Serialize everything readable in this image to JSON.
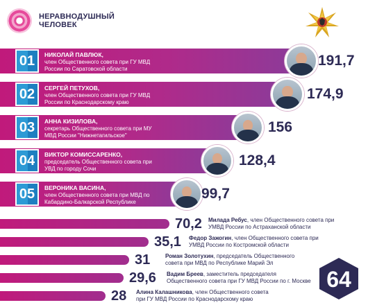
{
  "brand": {
    "line1": "НЕРАВНОДУШНЫЙ",
    "line2": "ЧЕЛОВЕК"
  },
  "emblem": {
    "icon": "mvd-eagle-emblem-icon"
  },
  "top": [
    {
      "rank": "01",
      "name": "НИКОЛАЙ ПАВЛЮК,",
      "desc1": "член Общественного совета при ГУ МВД",
      "desc2": "России по Саратовской области",
      "value": "191,7"
    },
    {
      "rank": "02",
      "name": "СЕРГЕЙ ПЕТУХОВ,",
      "desc1": "член Общественного совета при ГУ МВД",
      "desc2": "России по Краснодарскому краю",
      "value": "174,9"
    },
    {
      "rank": "03",
      "name": "АННА КИЗИЛОВА,",
      "desc1": "секретарь Общественного совета при МУ",
      "desc2": "МВД России \"Нижнетагильское\"",
      "value": "156"
    },
    {
      "rank": "04",
      "name": "ВИКТОР КОМИССАРЕНКО,",
      "desc1": "председатель Общественного совета при",
      "desc2": "УВД по городу Сочи",
      "value": "128,4"
    },
    {
      "rank": "05",
      "name": "ВЕРОНИКА ВАСИНА,",
      "desc1": "член Общественного совета при МВД по",
      "desc2": "Кабардино-Балкарской Республике",
      "value": "99,7"
    }
  ],
  "rest": [
    {
      "value": "70,2",
      "name": "Милада Ребус",
      "desc1": ", член Общественного совета при",
      "desc2": "УМВД России по Астраханской области"
    },
    {
      "value": "35,1",
      "name": "Федор Зажогин",
      "desc1": ", член Общественного совета при",
      "desc2": "УМВД России по Костромской области"
    },
    {
      "value": "31",
      "name": "Роман Золотухин",
      "desc1": ", председатель Общественного",
      "desc2": "совета при МВД по Республике Марий Эл"
    },
    {
      "value": "29,6",
      "name": "Вадим Бреев",
      "desc1": ", заместитель председателя",
      "desc2": "Общественного совета при ГУ МВД России  по г. Москве"
    },
    {
      "value": "28",
      "name": "Алина Калашникова",
      "desc1": ", член Общественного совета",
      "desc2": "при ГУ МВД России по Краснодарскому краю"
    }
  ],
  "badge": {
    "number": "64",
    "color": "#2d2a55"
  },
  "colors": {
    "bar": "#c01a7b",
    "accent": "#1e7fc0",
    "text": "#2d2a55"
  }
}
